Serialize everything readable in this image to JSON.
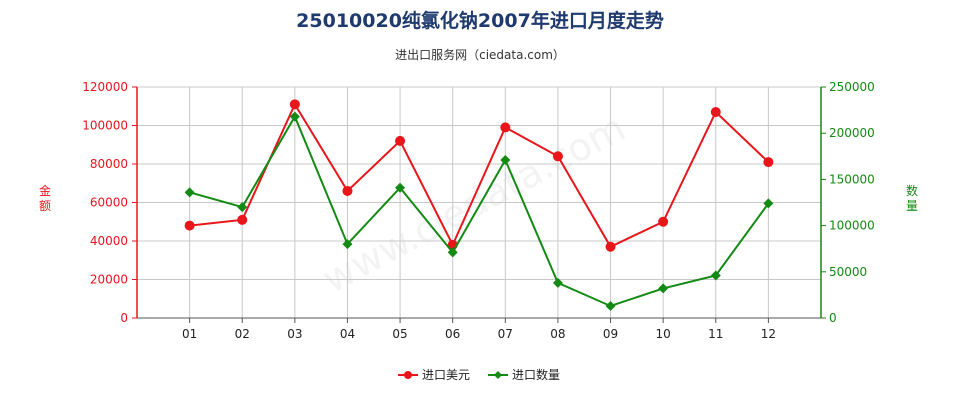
{
  "title": "25010020纯氯化钠2007年进口月度走势",
  "subtitle": "进出口服务网（ciedata.com）",
  "watermark": "www.ciedata.com",
  "chart_data": {
    "type": "line",
    "categories": [
      "01",
      "02",
      "03",
      "04",
      "05",
      "06",
      "07",
      "08",
      "09",
      "10",
      "11",
      "12"
    ],
    "series": [
      {
        "name": "进口美元",
        "axis": "left",
        "color": "#e8161b",
        "marker": "circle",
        "values": [
          48000,
          51000,
          111000,
          66000,
          92000,
          38000,
          99000,
          84000,
          37000,
          50000,
          107000,
          81000
        ]
      },
      {
        "name": "进口数量",
        "axis": "right",
        "color": "#138a13",
        "marker": "diamond",
        "values": [
          136000,
          120000,
          218000,
          80000,
          141000,
          71000,
          171000,
          38000,
          13000,
          32000,
          46000,
          124000
        ]
      }
    ],
    "y_left": {
      "label": "金额",
      "ylim": [
        0,
        120000
      ],
      "ticks": [
        "0",
        "20000",
        "40000",
        "60000",
        "80000",
        "100000",
        "120000"
      ],
      "color": "#e8161b"
    },
    "y_right": {
      "label": "数量",
      "ylim": [
        0,
        250000
      ],
      "ticks": [
        "0",
        "50000",
        "100000",
        "150000",
        "200000",
        "250000"
      ],
      "color": "#138a13"
    },
    "grid": true,
    "legend_position": "bottom-center"
  }
}
